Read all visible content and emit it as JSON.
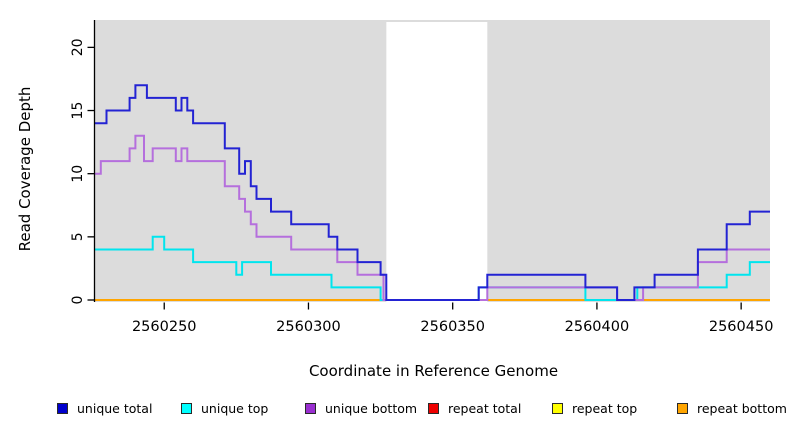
{
  "chart_data": {
    "type": "line",
    "subtype": "step-coverage-plot",
    "title": "",
    "xlabel": "Coordinate in Reference Genome",
    "ylabel": "Read Coverage Depth",
    "x_range": [
      2560226,
      2560460
    ],
    "y_range": [
      0,
      22.3
    ],
    "x_ticks": [
      "2560250",
      "2560300",
      "2560350",
      "2560400",
      "2560450"
    ],
    "x_tick_values": [
      2560250,
      2560300,
      2560350,
      2560400,
      2560450
    ],
    "y_ticks": [
      "0",
      "5",
      "10",
      "15",
      "20"
    ],
    "y_tick_values": [
      0,
      5,
      10,
      15,
      20
    ],
    "grid": "off",
    "plot_bg": "#dcdcdc",
    "page_bg": "#ffffff",
    "masked_region": {
      "start": 2560327,
      "end": 2560362,
      "color": "#ffffff"
    },
    "legend_position": "bottom",
    "series": [
      {
        "name": "unique total",
        "color": "#2323d3",
        "legend_color": "#0000cd",
        "steps": [
          [
            2560226,
            14
          ],
          [
            2560230,
            15
          ],
          [
            2560238,
            16
          ],
          [
            2560240,
            17
          ],
          [
            2560244,
            16
          ],
          [
            2560254,
            15
          ],
          [
            2560256,
            16
          ],
          [
            2560258,
            15
          ],
          [
            2560260,
            14
          ],
          [
            2560271,
            12
          ],
          [
            2560276,
            10
          ],
          [
            2560278,
            11
          ],
          [
            2560280,
            9
          ],
          [
            2560282,
            8
          ],
          [
            2560287,
            7
          ],
          [
            2560294,
            6
          ],
          [
            2560307,
            5
          ],
          [
            2560310,
            4
          ],
          [
            2560317,
            3
          ],
          [
            2560325,
            2
          ],
          [
            2560327,
            0
          ],
          [
            2560359,
            1
          ],
          [
            2560362,
            2
          ],
          [
            2560396,
            1
          ],
          [
            2560407,
            0
          ],
          [
            2560413,
            1
          ],
          [
            2560420,
            2
          ],
          [
            2560435,
            4
          ],
          [
            2560445,
            6
          ],
          [
            2560453,
            7
          ]
        ]
      },
      {
        "name": "unique top",
        "color": "#00e5ee",
        "legend_color": "#00ffff",
        "steps": [
          [
            2560226,
            4
          ],
          [
            2560246,
            5
          ],
          [
            2560250,
            4
          ],
          [
            2560260,
            3
          ],
          [
            2560275,
            2
          ],
          [
            2560277,
            3
          ],
          [
            2560287,
            2
          ],
          [
            2560308,
            1
          ],
          [
            2560325,
            0
          ],
          [
            2560359,
            1
          ],
          [
            2560396,
            0
          ],
          [
            2560414,
            1
          ],
          [
            2560445,
            2
          ],
          [
            2560453,
            3
          ]
        ]
      },
      {
        "name": "unique bottom",
        "color": "#b56fdd",
        "legend_color": "#9a2fd1",
        "steps": [
          [
            2560226,
            10
          ],
          [
            2560228,
            11
          ],
          [
            2560238,
            12
          ],
          [
            2560240,
            13
          ],
          [
            2560243,
            11
          ],
          [
            2560246,
            12
          ],
          [
            2560254,
            11
          ],
          [
            2560256,
            12
          ],
          [
            2560258,
            11
          ],
          [
            2560271,
            9
          ],
          [
            2560276,
            8
          ],
          [
            2560278,
            7
          ],
          [
            2560280,
            6
          ],
          [
            2560282,
            5
          ],
          [
            2560294,
            4
          ],
          [
            2560310,
            3
          ],
          [
            2560317,
            2
          ],
          [
            2560326,
            0
          ],
          [
            2560362,
            1
          ],
          [
            2560407,
            0
          ],
          [
            2560416,
            1
          ],
          [
            2560435,
            3
          ],
          [
            2560445,
            4
          ]
        ]
      },
      {
        "name": "repeat total",
        "color": "#ee0000",
        "legend_color": "#ee0000",
        "steps": [
          [
            2560226,
            0
          ]
        ]
      },
      {
        "name": "repeat top",
        "color": "#ffff00",
        "legend_color": "#ffff00",
        "steps": [
          [
            2560226,
            0
          ]
        ]
      },
      {
        "name": "repeat bottom",
        "color": "#ffa500",
        "legend_color": "#ffa500",
        "steps": [
          [
            2560226,
            0
          ]
        ]
      }
    ]
  }
}
